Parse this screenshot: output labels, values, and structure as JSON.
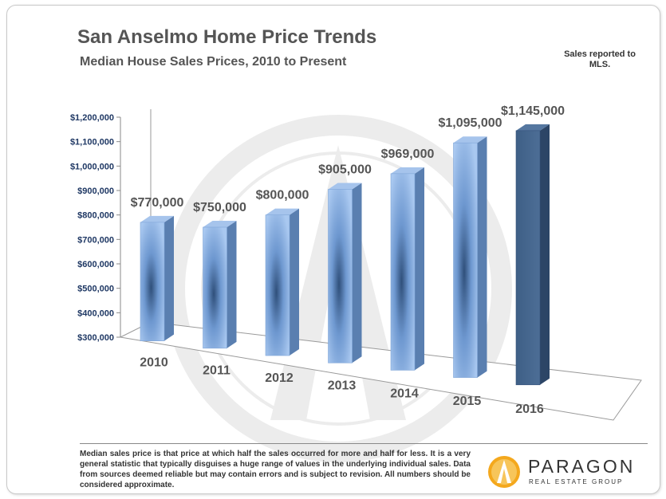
{
  "header": {
    "title": "San Anselmo Home Price Trends",
    "subtitle": "Median House Sales Prices, 2010 to Present",
    "note": "Sales reported to MLS."
  },
  "footer": {
    "footnote": "Median sales price is that price at which half the sales occurred for more and half for less. It is a very general statistic that typically disguises a huge range of values in the underlying individual sales. Data from sources deemed reliable but may contain errors and is subject to revision. All numbers should be considered approximate.",
    "logo_name": "PARAGON",
    "logo_tagline": "REAL ESTATE GROUP",
    "logo_icon": "paragon-peak-logo-icon"
  },
  "colors": {
    "bar_light": "#8fb6e8",
    "bar_dark": "#3f5f85",
    "axis_text": "#1f3864",
    "label_text": "#555555",
    "watermark": "#ececec"
  },
  "chart_data": {
    "type": "bar",
    "categories": [
      "2010",
      "2011",
      "2012",
      "2013",
      "2014",
      "2015",
      "2016"
    ],
    "values": [
      770000,
      750000,
      800000,
      905000,
      969000,
      1095000,
      1145000
    ],
    "data_labels": [
      "$770,000",
      "$750,000",
      "$800,000",
      "$905,000",
      "$969,000",
      "$1,095,000",
      "$1,145,000"
    ],
    "y_ticks": [
      "$300,000",
      "$400,000",
      "$500,000",
      "$600,000",
      "$700,000",
      "$800,000",
      "$900,000",
      "$1,000,000",
      "$1,100,000",
      "$1,200,000"
    ],
    "ylim": [
      300000,
      1200000
    ],
    "title": "San Anselmo Home Price Trends",
    "xlabel": "",
    "ylabel": "",
    "grid": false,
    "highlight_last": true
  }
}
